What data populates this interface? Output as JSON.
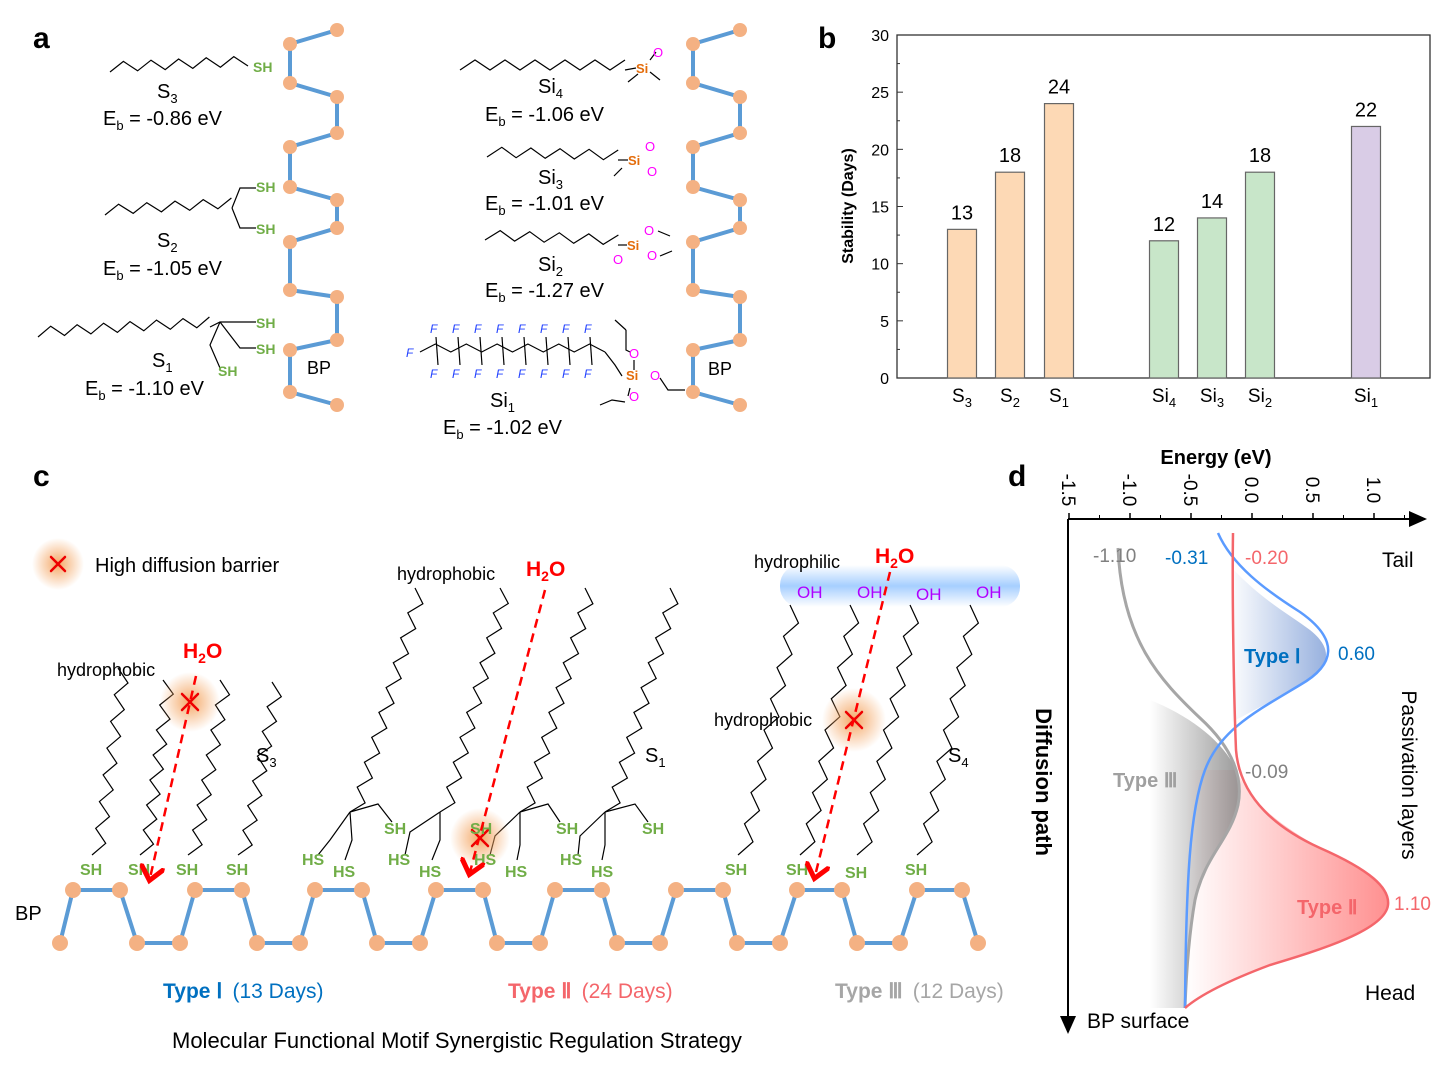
{
  "panel_labels": {
    "a": "a",
    "b": "b",
    "c": "c",
    "d": "d"
  },
  "colors": {
    "bond": "#5b9bd5",
    "atom": "#f4b183",
    "sh": "#70ad47",
    "si": "#e46c0a",
    "oxygen": "#ff00ff",
    "fluorine": "#1f3fff",
    "type1": "#0070c0",
    "type2": "#f4666b",
    "type3": "#a6a6a6",
    "h2o": "#ff0000"
  },
  "panel_a": {
    "bp_label": "BP",
    "sh": "SH",
    "si": "Si",
    "o": "O",
    "f": "F",
    "molecules": [
      {
        "base": "S",
        "sub": "3",
        "eb": "E",
        "eb_sub": "b",
        "eb_value": " = -0.86 eV"
      },
      {
        "base": "S",
        "sub": "2",
        "eb": "E",
        "eb_sub": "b",
        "eb_value": " = -1.05 eV"
      },
      {
        "base": "S",
        "sub": "1",
        "eb": "E",
        "eb_sub": "b",
        "eb_value": " = -1.10 eV"
      },
      {
        "base": "Si",
        "sub": "4",
        "eb": "E",
        "eb_sub": "b",
        "eb_value": " = -1.06 eV"
      },
      {
        "base": "Si",
        "sub": "3",
        "eb": "E",
        "eb_sub": "b",
        "eb_value": " = -1.01 eV"
      },
      {
        "base": "Si",
        "sub": "2",
        "eb": "E",
        "eb_sub": "b",
        "eb_value": " = -1.27 eV"
      },
      {
        "base": "Si",
        "sub": "1",
        "eb": "E",
        "eb_sub": "b",
        "eb_value": " = -1.02 eV"
      }
    ]
  },
  "chart_data": {
    "type": "bar",
    "categories": [
      {
        "base": "S",
        "sub": "3"
      },
      {
        "base": "S",
        "sub": "2"
      },
      {
        "base": "S",
        "sub": "1"
      },
      {
        "base": "Si",
        "sub": "4"
      },
      {
        "base": "Si",
        "sub": "3"
      },
      {
        "base": "Si",
        "sub": "2"
      },
      {
        "base": "Si",
        "sub": "1"
      }
    ],
    "values": [
      13,
      18,
      24,
      12,
      14,
      18,
      22
    ],
    "bar_colors": [
      "#fdd9b5",
      "#fdd9b5",
      "#fdd9b5",
      "#c8e6c9",
      "#c8e6c9",
      "#c8e6c9",
      "#d9cce6"
    ],
    "xlabel": "",
    "ylabel": "Stability (Days)",
    "ylim": [
      0,
      30
    ],
    "yticks": [
      0,
      5,
      10,
      15,
      20,
      25,
      30
    ],
    "grid": false
  },
  "panel_c": {
    "legend": "High diffusion barrier",
    "hydrophobic": "hydrophobic",
    "hydrophilic": "hydrophilic",
    "h2o": {
      "base": "H",
      "sub": "2",
      "tail": "O"
    },
    "mol_labels": [
      {
        "base": "S",
        "sub": "3"
      },
      {
        "base": "S",
        "sub": "1"
      },
      {
        "base": "S",
        "sub": "4"
      }
    ],
    "sh": "SH",
    "hs": "HS",
    "oh": "OH",
    "bp_label": "BP",
    "types": [
      {
        "name": "Type Ⅰ",
        "days": "(13 Days)"
      },
      {
        "name": "Type Ⅱ",
        "days": "(24 Days)"
      },
      {
        "name": "Type Ⅲ",
        "days": "(12 Days)"
      }
    ],
    "caption": "Molecular Functional Motif Synergistic Regulation Strategy"
  },
  "panel_d": {
    "xlabel": "Energy (eV)",
    "xticks": [
      "-1.5",
      "-1.0",
      "-0.5",
      "0.0",
      "0.5",
      "1.0"
    ],
    "ylabel": "Diffusion path",
    "right_label": "Passivation layers",
    "tail": "Tail",
    "head": "Head",
    "bp_surface": "BP surface",
    "curves": [
      {
        "name": "Type Ⅰ",
        "start": "-0.31",
        "peak": "0.60"
      },
      {
        "name": "Type Ⅱ",
        "start": "-0.20",
        "peak": "1.10"
      },
      {
        "name": "Type Ⅲ",
        "start": "-1.10",
        "peak": "-0.09"
      }
    ]
  }
}
